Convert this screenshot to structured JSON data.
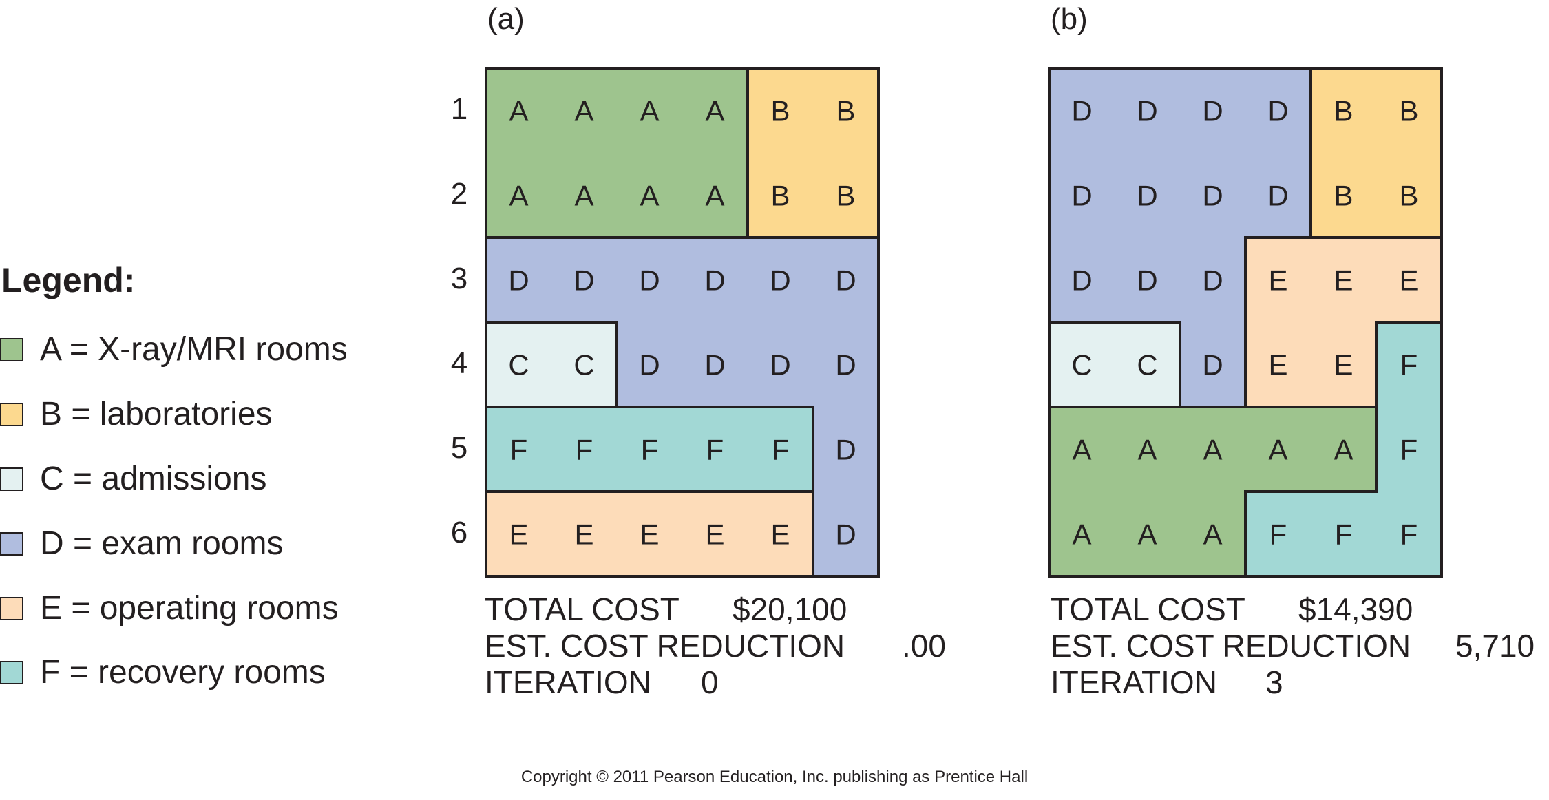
{
  "legend": {
    "title": "Legend:",
    "items": [
      {
        "code": "A",
        "text": "A = X-ray/MRI rooms",
        "color": "#9ec48e"
      },
      {
        "code": "B",
        "text": "B = laboratories",
        "color": "#fcd98f"
      },
      {
        "code": "C",
        "text": "C = admissions",
        "color": "#e4f1f1"
      },
      {
        "code": "D",
        "text": "D = exam rooms",
        "color": "#b0bddf"
      },
      {
        "code": "E",
        "text": "E = operating rooms",
        "color": "#fddcb9"
      },
      {
        "code": "F",
        "text": "F = recovery rooms",
        "color": "#a2d8d5"
      }
    ]
  },
  "row_numbers": [
    "1",
    "2",
    "3",
    "4",
    "5",
    "6"
  ],
  "panels": [
    {
      "label": "(a)",
      "layout": [
        [
          "A",
          "A",
          "A",
          "A",
          "B",
          "B"
        ],
        [
          "A",
          "A",
          "A",
          "A",
          "B",
          "B"
        ],
        [
          "D",
          "D",
          "D",
          "D",
          "D",
          "D"
        ],
        [
          "C",
          "C",
          "D",
          "D",
          "D",
          "D"
        ],
        [
          "F",
          "F",
          "F",
          "F",
          "F",
          "D"
        ],
        [
          "E",
          "E",
          "E",
          "E",
          "E",
          "D"
        ]
      ],
      "total_cost_label": "TOTAL COST",
      "total_cost_value": "$20,100",
      "reduction_label": "EST. COST REDUCTION",
      "reduction_value": ".00",
      "iteration_label": "ITERATION",
      "iteration_value": "0"
    },
    {
      "label": "(b)",
      "layout": [
        [
          "D",
          "D",
          "D",
          "D",
          "B",
          "B"
        ],
        [
          "D",
          "D",
          "D",
          "D",
          "B",
          "B"
        ],
        [
          "D",
          "D",
          "D",
          "E",
          "E",
          "E"
        ],
        [
          "C",
          "C",
          "D",
          "E",
          "E",
          "F"
        ],
        [
          "A",
          "A",
          "A",
          "A",
          "A",
          "F"
        ],
        [
          "A",
          "A",
          "A",
          "F",
          "F",
          "F"
        ]
      ],
      "total_cost_label": "TOTAL COST",
      "total_cost_value": "$14,390",
      "reduction_label": "EST. COST REDUCTION",
      "reduction_value": "5,710",
      "iteration_label": "ITERATION",
      "iteration_value": "3"
    }
  ],
  "copyright": "Copyright © 2011 Pearson Education, Inc. publishing as Prentice Hall"
}
